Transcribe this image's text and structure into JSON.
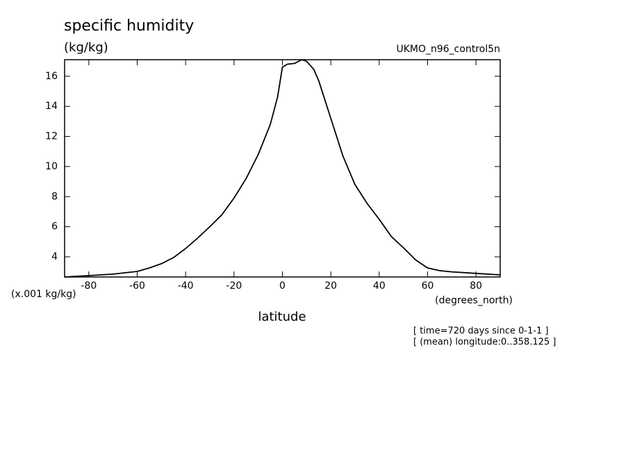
{
  "chart_data": {
    "type": "line",
    "title": "specific humidity",
    "units_label": "(kg/kg)",
    "dataset_label": "UKMO_n96_control5n",
    "y_scale_label": "(x.001 kg/kg)",
    "x_label": "latitude",
    "x_units_label": "(degrees_north)",
    "annotations": [
      "[ time=720 days since 0-1-1 ]",
      "[ (mean) longitude:0..358.125 ]"
    ],
    "color": "#000000",
    "x": [
      -90,
      -80,
      -70,
      -60,
      -55,
      -50,
      -45,
      -40,
      -35,
      -30,
      -25,
      -20,
      -15,
      -10,
      -5,
      -2,
      0,
      2,
      5,
      8,
      10,
      13,
      15,
      20,
      25,
      30,
      35,
      40,
      45,
      50,
      55,
      60,
      65,
      70,
      80,
      90
    ],
    "values": [
      2.66,
      2.75,
      2.85,
      3.03,
      3.26,
      3.54,
      3.95,
      4.55,
      5.25,
      6.0,
      6.8,
      7.9,
      9.2,
      10.8,
      12.8,
      14.6,
      16.6,
      16.8,
      16.85,
      17.1,
      17.0,
      16.45,
      15.7,
      13.2,
      10.7,
      8.8,
      7.55,
      6.5,
      5.35,
      4.6,
      3.8,
      3.26,
      3.08,
      3.0,
      2.9,
      2.8
    ],
    "xlim": [
      -90,
      90
    ],
    "xticks": [
      -80,
      -60,
      -40,
      -20,
      0,
      20,
      40,
      60,
      80
    ],
    "ylim": [
      2.66,
      17.1
    ],
    "yticks": [
      4,
      6,
      8,
      10,
      12,
      14,
      16
    ]
  }
}
